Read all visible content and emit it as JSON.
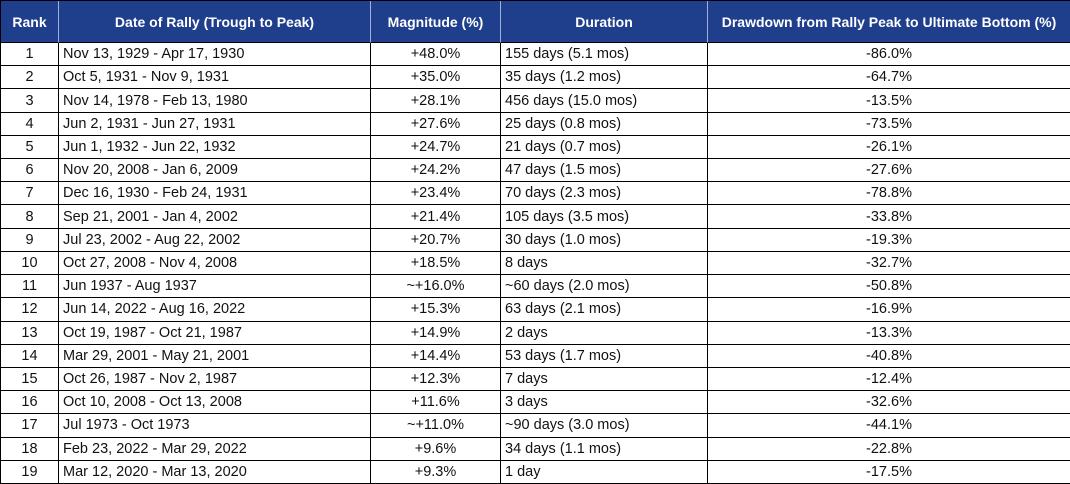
{
  "table": {
    "header": [
      "Rank",
      "Date of Rally (Trough to Peak)",
      "Magnitude (%)",
      "Duration",
      "Drawdown from Rally Peak to Ultimate Bottom (%)"
    ],
    "rows": [
      [
        "1",
        "Nov 13, 1929 - Apr 17, 1930",
        "+48.0%",
        "155 days (5.1 mos)",
        "-86.0%"
      ],
      [
        "2",
        "Oct 5, 1931 - Nov 9, 1931",
        "+35.0%",
        "35 days (1.2 mos)",
        "-64.7%"
      ],
      [
        "3",
        "Nov 14, 1978 - Feb 13, 1980",
        "+28.1%",
        "456 days (15.0 mos)",
        "-13.5%"
      ],
      [
        "4",
        "Jun 2, 1931 - Jun 27, 1931",
        "+27.6%",
        "25 days (0.8 mos)",
        "-73.5%"
      ],
      [
        "5",
        "Jun 1, 1932 - Jun 22, 1932",
        "+24.7%",
        "21 days (0.7 mos)",
        "-26.1%"
      ],
      [
        "6",
        "Nov 20, 2008 - Jan 6, 2009",
        "+24.2%",
        "47 days (1.5 mos)",
        "-27.6%"
      ],
      [
        "7",
        "Dec 16, 1930 - Feb 24, 1931",
        "+23.4%",
        "70 days (2.3 mos)",
        "-78.8%"
      ],
      [
        "8",
        "Sep 21, 2001 - Jan 4, 2002",
        "+21.4%",
        "105 days (3.5 mos)",
        "-33.8%"
      ],
      [
        "9",
        "Jul 23, 2002 - Aug 22, 2002",
        "+20.7%",
        "30 days (1.0 mos)",
        "-19.3%"
      ],
      [
        "10",
        "Oct 27, 2008 - Nov 4, 2008",
        "+18.5%",
        "8 days",
        "-32.7%"
      ],
      [
        "11",
        "Jun 1937 - Aug 1937",
        "~+16.0%",
        "~60 days (2.0 mos)",
        "-50.8%"
      ],
      [
        "12",
        "Jun 14, 2022 - Aug 16, 2022",
        "+15.3%",
        "63 days (2.1 mos)",
        "-16.9%"
      ],
      [
        "13",
        "Oct 19, 1987 - Oct 21, 1987",
        "+14.9%",
        "2 days",
        "-13.3%"
      ],
      [
        "14",
        "Mar 29, 2001 - May 21, 2001",
        "+14.4%",
        "53 days (1.7 mos)",
        "-40.8%"
      ],
      [
        "15",
        "Oct 26, 1987 - Nov 2, 1987",
        "+12.3%",
        "7 days",
        "-12.4%"
      ],
      [
        "16",
        "Oct 10, 2008 - Oct 13, 2008",
        "+11.6%",
        "3 days",
        "-32.6%"
      ],
      [
        "17",
        "Jul 1973 - Oct 1973",
        "~+11.0%",
        "~90 days (3.0 mos)",
        "-44.1%"
      ],
      [
        "18",
        "Feb 23, 2022 - Mar 29, 2022",
        "+9.6%",
        "34 days (1.1 mos)",
        "-22.8%"
      ],
      [
        "19",
        "Mar 12, 2020 - Mar 13, 2020",
        "+9.3%",
        "1 day",
        "-17.5%"
      ]
    ]
  }
}
